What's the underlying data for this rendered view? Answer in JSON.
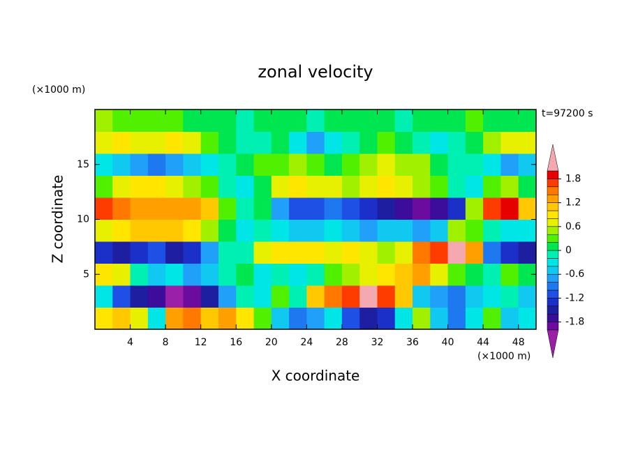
{
  "chart_data": {
    "type": "contour",
    "title": "zonal velocity",
    "time_label": "t=97200 s",
    "xlabel": "X coordinate",
    "ylabel": "Z coordinate",
    "x_unit": "(×1000 m)",
    "y_unit": "(×1000 m)",
    "xlim": [
      0,
      50
    ],
    "ylim": [
      0,
      20
    ],
    "xticks": [
      4,
      8,
      12,
      16,
      20,
      24,
      28,
      32,
      36,
      40,
      44,
      48
    ],
    "yticks": [
      5,
      10,
      15
    ],
    "x": [
      1,
      3,
      5,
      7,
      9,
      11,
      13,
      15,
      17,
      19,
      21,
      23,
      25,
      27,
      29,
      31,
      33,
      35,
      37,
      39,
      41,
      43,
      45,
      47,
      49
    ],
    "y": [
      1,
      3,
      5,
      7,
      9,
      11,
      13,
      15,
      17,
      19
    ],
    "z": [
      [
        0.8,
        1.0,
        0.6,
        -0.4,
        1.2,
        1.4,
        1.0,
        1.2,
        0.8,
        0.2,
        -0.6,
        -1.0,
        -0.8,
        -0.4,
        -1.2,
        -1.6,
        -1.4,
        -0.4,
        0.4,
        -0.6,
        -1.0,
        -0.4,
        0.2,
        -0.6,
        -0.4
      ],
      [
        -0.4,
        -1.2,
        -1.6,
        -1.8,
        -2.1,
        -1.9,
        -1.6,
        -0.8,
        -0.2,
        -0.4,
        0.2,
        -0.2,
        1.0,
        1.4,
        1.7,
        2.1,
        1.6,
        1.0,
        -0.6,
        -0.8,
        -1.0,
        -0.6,
        -0.4,
        -0.2,
        -0.6
      ],
      [
        0.8,
        0.6,
        -0.2,
        -0.6,
        -0.4,
        -0.8,
        -0.6,
        -0.2,
        0.0,
        -0.4,
        -0.2,
        -0.4,
        -0.2,
        0.2,
        0.4,
        0.6,
        0.8,
        1.0,
        1.2,
        0.6,
        0.2,
        0.0,
        -0.2,
        0.2,
        0.0
      ],
      [
        -1.4,
        -1.6,
        -1.4,
        -1.2,
        -1.5,
        -1.3,
        -0.8,
        -0.2,
        -0.2,
        0.6,
        0.8,
        0.9,
        0.8,
        0.7,
        0.9,
        0.6,
        0.4,
        0.6,
        1.4,
        1.7,
        2.1,
        1.2,
        -1.0,
        -1.4,
        -1.6
      ],
      [
        0.6,
        0.8,
        1.0,
        1.1,
        1.0,
        0.8,
        0.4,
        0.0,
        -0.4,
        -0.2,
        -0.4,
        -0.6,
        -0.6,
        -0.4,
        -0.6,
        -0.8,
        -0.6,
        -0.6,
        -0.8,
        -0.6,
        0.4,
        0.2,
        -0.2,
        -0.4,
        -0.4
      ],
      [
        1.6,
        1.5,
        1.3,
        1.2,
        1.3,
        1.2,
        1.0,
        0.2,
        -0.2,
        0.0,
        -0.8,
        -1.2,
        -1.2,
        -1.0,
        -1.2,
        -1.4,
        -1.6,
        -1.7,
        -1.9,
        -1.8,
        -1.4,
        0.4,
        1.6,
        1.9,
        1.0
      ],
      [
        0.2,
        0.6,
        0.8,
        0.8,
        0.6,
        0.4,
        0.2,
        -0.2,
        -0.4,
        0.0,
        0.6,
        0.8,
        0.6,
        0.6,
        0.4,
        0.6,
        0.8,
        0.6,
        0.4,
        0.2,
        -0.2,
        -0.4,
        0.2,
        0.4,
        0.0
      ],
      [
        -0.4,
        -0.6,
        -0.8,
        -1.0,
        -0.8,
        -0.6,
        -0.4,
        -0.2,
        0.0,
        0.2,
        0.2,
        0.4,
        0.2,
        0.0,
        0.2,
        0.4,
        0.6,
        0.5,
        0.4,
        0.0,
        -0.2,
        -0.2,
        -0.4,
        -0.8,
        -0.6
      ],
      [
        0.6,
        0.8,
        0.6,
        0.6,
        0.8,
        0.6,
        0.2,
        0.0,
        -0.2,
        -0.2,
        0.0,
        -0.4,
        -0.8,
        -0.4,
        -0.2,
        0.0,
        0.2,
        0.0,
        -0.2,
        -0.4,
        -0.2,
        0.0,
        0.4,
        0.6,
        0.6
      ],
      [
        0.4,
        0.3,
        0.2,
        0.2,
        0.2,
        0.1,
        0.1,
        0.0,
        -0.1,
        0.0,
        0.1,
        0.0,
        -0.1,
        0.0,
        0.0,
        0.1,
        0.0,
        -0.1,
        0.0,
        0.0,
        0.1,
        0.2,
        0.1,
        0.1,
        0.1
      ]
    ],
    "levels": [
      -2.0,
      -1.8,
      -1.6,
      -1.4,
      -1.2,
      -1.0,
      -0.8,
      -0.6,
      -0.4,
      -0.2,
      0,
      0.2,
      0.4,
      0.6,
      0.8,
      1.0,
      1.2,
      1.4,
      1.6,
      1.8,
      2.0
    ],
    "colors": [
      "#9a20a8",
      "#6c0c9e",
      "#3c0c9a",
      "#1e1ea0",
      "#1a30c8",
      "#1e50e6",
      "#1e78f0",
      "#20a0f8",
      "#10c8f0",
      "#00e6e6",
      "#00f0b4",
      "#00e650",
      "#50f000",
      "#a0f000",
      "#e6f000",
      "#ffe600",
      "#ffc800",
      "#ffa000",
      "#ff7800",
      "#ff3c00",
      "#e60000",
      "#f4a8b0"
    ],
    "colorbar_ticks": [
      -1.8,
      -1.2,
      -0.6,
      0,
      0.6,
      1.2,
      1.8
    ]
  }
}
